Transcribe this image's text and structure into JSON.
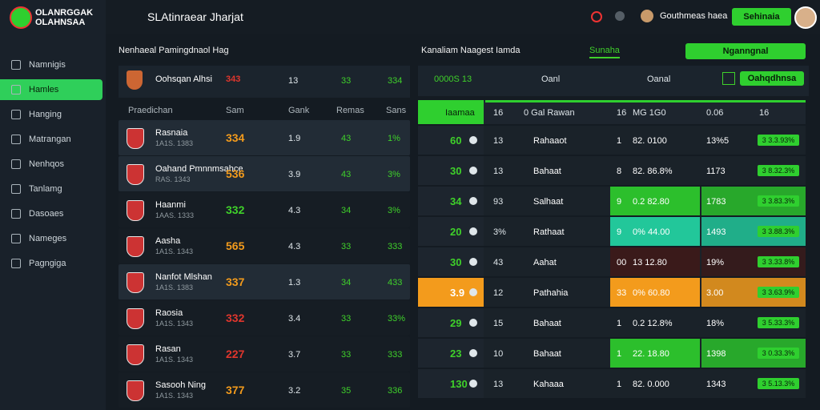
{
  "brand": {
    "line1": "OLANRGGAK",
    "line2": "OLAHNSAA"
  },
  "header": {
    "title": "SLAtinraear Jharjat",
    "user": "Gouthmeas haea",
    "button": "Sehinaia"
  },
  "sidebar": {
    "items": [
      "Namnigis",
      "Hamles",
      "Hanging",
      "Matrangan",
      "Nenhqos",
      "Tanlamg",
      "Dasoaes",
      "Nameges",
      "Pagngiga"
    ],
    "active": 1,
    "active_color": "#2fcf5a"
  },
  "left": {
    "title": "Nenhaeal Pamingdnaol Hag",
    "top": {
      "name": "Oohsqan Alhsi",
      "score": "343",
      "c1": "13",
      "c2": "33",
      "c3": "334",
      "score_color": "#e0362d"
    },
    "columns": [
      "Praedichan",
      "Sam",
      "Gank",
      "Remas",
      "Sans"
    ],
    "rows": [
      {
        "name": "Rasnaia",
        "sub": "1A1S. 1383",
        "score": "334",
        "c1": "1.9",
        "c2": "43",
        "c3": "1%",
        "score_color": "#f39b1c"
      },
      {
        "name": "Oahand Pmnnmsahce",
        "sub": "RAS. 1343",
        "score": "536",
        "c1": "3.9",
        "c2": "43",
        "c3": "3%",
        "score_color": "#f39b1c"
      },
      {
        "name": "Haanmi",
        "sub": "1AAS. 1333",
        "score": "332",
        "c1": "4.3",
        "c2": "34",
        "c3": "3%",
        "score_color": "#3fd12a"
      },
      {
        "name": "Aasha",
        "sub": "1A1S. 1343",
        "score": "565",
        "c1": "4.3",
        "c2": "33",
        "c3": "333",
        "score_color": "#f39b1c"
      },
      {
        "name": "Nanfot Mlshan",
        "sub": "1A1S. 1383",
        "score": "337",
        "c1": "1.3",
        "c2": "34",
        "c3": "433",
        "score_color": "#f39b1c"
      },
      {
        "name": "Raosia",
        "sub": "1A1S. 1343",
        "score": "332",
        "c1": "3.4",
        "c2": "33",
        "c3": "33%",
        "score_color": "#e0362d"
      },
      {
        "name": "Rasan",
        "sub": "1A1S. 1343",
        "score": "227",
        "c1": "3.7",
        "c2": "33",
        "c3": "333",
        "score_color": "#e0362d"
      },
      {
        "name": "Sasooh Ning",
        "sub": "1A1S. 1343",
        "score": "377",
        "c1": "3.2",
        "c2": "35",
        "c3": "336",
        "score_color": "#f39b1c"
      }
    ]
  },
  "right": {
    "title": "Kanaliam Naagest Iamda",
    "tab": "Sunaha",
    "button": "Nganngnal",
    "toolbar": {
      "code": "0000S 13",
      "f1": "Oanl",
      "f2": "Oanal",
      "button": "Oahqdhnsa"
    },
    "columns": [
      "Iaamaa",
      "16",
      "0 Gal Rawan",
      "16",
      "MG  1G0",
      "0.06",
      "16"
    ],
    "rows": [
      {
        "odds": "60",
        "n": "13",
        "name": "Rahaaot",
        "n2": "1",
        "val": "82. 0100",
        "pct": "13%5",
        "badge": "3 3.3.93%",
        "tint": "#1d252e"
      },
      {
        "odds": "30",
        "n": "13",
        "name": "Bahaat",
        "n2": "8",
        "val": "82. 86.8%",
        "pct": "1173",
        "badge": "3 8.32.3%",
        "tint": "#1d252e"
      },
      {
        "odds": "34",
        "n": "93",
        "name": "Salhaat",
        "n2": "9",
        "val": "0.2 82.80",
        "pct": "1783",
        "badge": "3 3.83.3%",
        "tint": "#2cbf2c"
      },
      {
        "odds": "20",
        "n": "3%",
        "name": "Rathaat",
        "n2": "9",
        "val": "0% 44.00",
        "pct": "1493",
        "badge": "3 3.88.3%",
        "tint": "#22c79a"
      },
      {
        "odds": "30",
        "n": "43",
        "name": "Aahat",
        "n2": "00",
        "val": "13 12.80",
        "pct": "19%",
        "badge": "3 3.33.8%",
        "tint": "#3a1a1a"
      },
      {
        "odds": "3.9",
        "n": "12",
        "name": "Pathahia",
        "n2": "33",
        "val": "0% 60.80",
        "pct": "3.00",
        "badge": "3 3.63.9%",
        "tint": "#f39b1c"
      },
      {
        "odds": "29",
        "n": "15",
        "name": "Bahaat",
        "n2": "1",
        "val": "0.2 12.8%",
        "pct": "18%",
        "badge": "3 5.33.3%",
        "tint": "#1d252e"
      },
      {
        "odds": "23",
        "n": "10",
        "name": "Bahaat",
        "n2": "1",
        "val": "22. 18.80",
        "pct": "1398",
        "badge": "3 0.33.3%",
        "tint": "#2cbf2c"
      },
      {
        "odds": "130",
        "n": "13",
        "name": "Kahaaa",
        "n2": "1",
        "val": "82. 0.000",
        "pct": "1343",
        "badge": "3 5.13.3%",
        "tint": "#1d252e"
      }
    ]
  }
}
